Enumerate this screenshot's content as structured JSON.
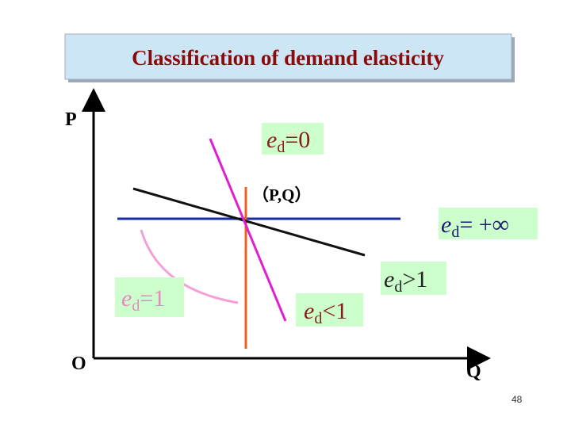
{
  "title": "Classification of demand elasticity",
  "axes": {
    "y_label": "P",
    "x_label": "Q",
    "origin": "O"
  },
  "point_label": "（P,Q）",
  "labels": [
    {
      "symbol": "e",
      "subscript": "d",
      "relation": "=0"
    },
    {
      "symbol": "e",
      "subscript": "d",
      "relation": "= +∞"
    },
    {
      "symbol": "e",
      "subscript": "d",
      "relation": ">1"
    },
    {
      "symbol": "e",
      "subscript": "d",
      "relation": "<1"
    },
    {
      "symbol": "e",
      "subscript": "d",
      "relation": "=1"
    }
  ],
  "page_number": "48"
}
